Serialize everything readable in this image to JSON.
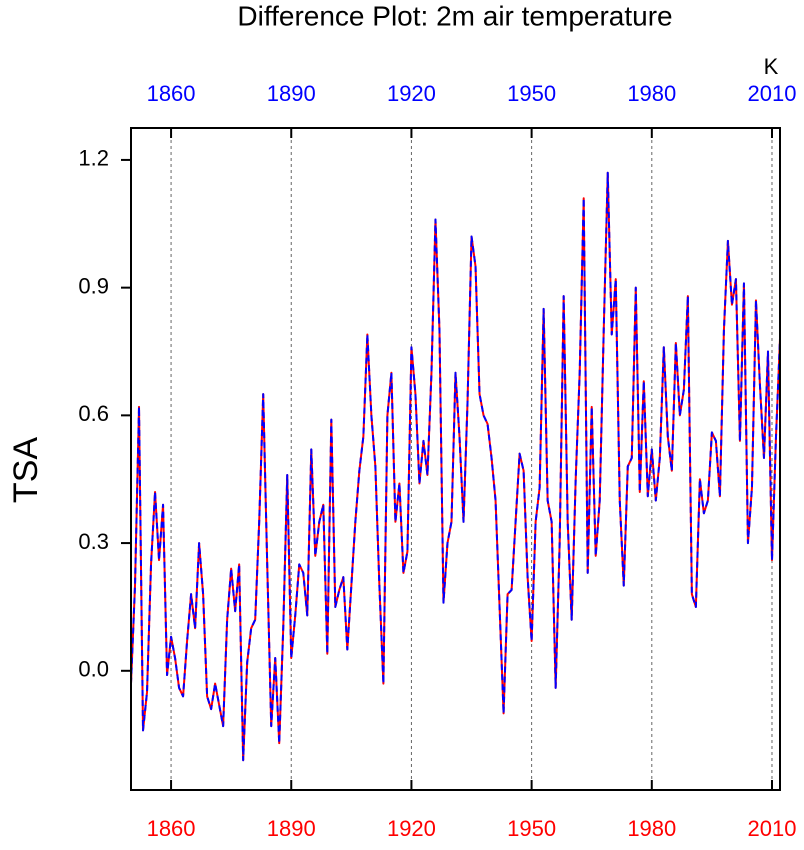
{
  "chart_data": {
    "type": "line",
    "title": "Difference Plot: 2m air temperature",
    "ylabel": "TSA",
    "top_right_label": "K",
    "xlim": [
      1850,
      2012
    ],
    "ylim": [
      -0.28,
      1.275
    ],
    "xticks": [
      1860,
      1890,
      1920,
      1950,
      1980,
      2010
    ],
    "yticks": [
      {
        "value": 0,
        "label": "0.0"
      },
      0.3,
      0.6,
      0.9,
      1.2
    ],
    "x_grid": true,
    "top_tick_color": "blue",
    "bottom_tick_color": "red",
    "x": [
      1850,
      1851,
      1852,
      1853,
      1854,
      1855,
      1856,
      1857,
      1858,
      1859,
      1860,
      1861,
      1862,
      1863,
      1864,
      1865,
      1866,
      1867,
      1868,
      1869,
      1870,
      1871,
      1872,
      1873,
      1874,
      1875,
      1876,
      1877,
      1878,
      1879,
      1880,
      1881,
      1882,
      1883,
      1884,
      1885,
      1886,
      1887,
      1888,
      1889,
      1890,
      1891,
      1892,
      1893,
      1894,
      1895,
      1896,
      1897,
      1898,
      1899,
      1900,
      1901,
      1902,
      1903,
      1904,
      1905,
      1906,
      1907,
      1908,
      1909,
      1910,
      1911,
      1912,
      1913,
      1914,
      1915,
      1916,
      1917,
      1918,
      1919,
      1920,
      1921,
      1922,
      1923,
      1924,
      1925,
      1926,
      1927,
      1928,
      1929,
      1930,
      1931,
      1932,
      1933,
      1934,
      1935,
      1936,
      1937,
      1938,
      1939,
      1940,
      1941,
      1942,
      1943,
      1944,
      1945,
      1946,
      1947,
      1948,
      1949,
      1950,
      1951,
      1952,
      1953,
      1954,
      1955,
      1956,
      1957,
      1958,
      1959,
      1960,
      1961,
      1962,
      1963,
      1964,
      1965,
      1966,
      1967,
      1968,
      1969,
      1970,
      1971,
      1972,
      1973,
      1974,
      1975,
      1976,
      1977,
      1978,
      1979,
      1980,
      1981,
      1982,
      1983,
      1984,
      1985,
      1986,
      1987,
      1988,
      1989,
      1990,
      1991,
      1992,
      1993,
      1994,
      1995,
      1996,
      1997,
      1998,
      1999,
      2000,
      2001,
      2002,
      2003,
      2004,
      2005,
      2006,
      2007,
      2008,
      2009,
      2010,
      2011,
      2012
    ],
    "series": [
      {
        "color": "red",
        "style": "solid",
        "values": [
          -0.03,
          0.2,
          0.62,
          -0.14,
          -0.05,
          0.25,
          0.42,
          0.26,
          0.39,
          -0.01,
          0.08,
          0.03,
          -0.04,
          -0.06,
          0.07,
          0.18,
          0.1,
          0.3,
          0.18,
          -0.06,
          -0.09,
          -0.03,
          -0.08,
          -0.13,
          0.12,
          0.24,
          0.14,
          0.25,
          -0.21,
          0.02,
          0.1,
          0.12,
          0.35,
          0.65,
          0.25,
          -0.13,
          0.03,
          -0.17,
          0.1,
          0.46,
          0.03,
          0.13,
          0.25,
          0.23,
          0.13,
          0.52,
          0.27,
          0.35,
          0.39,
          0.04,
          0.59,
          0.15,
          0.19,
          0.22,
          0.05,
          0.2,
          0.35,
          0.47,
          0.55,
          0.79,
          0.6,
          0.48,
          0.2,
          -0.03,
          0.6,
          0.7,
          0.35,
          0.44,
          0.23,
          0.28,
          0.76,
          0.65,
          0.44,
          0.54,
          0.46,
          0.7,
          1.06,
          0.8,
          0.16,
          0.3,
          0.35,
          0.7,
          0.55,
          0.35,
          0.63,
          1.02,
          0.95,
          0.65,
          0.6,
          0.58,
          0.5,
          0.4,
          0.15,
          -0.1,
          0.18,
          0.19,
          0.35,
          0.51,
          0.47,
          0.22,
          0.07,
          0.35,
          0.43,
          0.85,
          0.4,
          0.35,
          -0.04,
          0.3,
          0.88,
          0.35,
          0.12,
          0.45,
          0.7,
          1.11,
          0.23,
          0.62,
          0.27,
          0.4,
          0.8,
          1.17,
          0.79,
          0.92,
          0.4,
          0.2,
          0.48,
          0.5,
          0.9,
          0.42,
          0.68,
          0.41,
          0.52,
          0.4,
          0.5,
          0.76,
          0.55,
          0.47,
          0.77,
          0.6,
          0.66,
          0.88,
          0.18,
          0.15,
          0.45,
          0.37,
          0.4,
          0.56,
          0.54,
          0.41,
          0.8,
          1.01,
          0.86,
          0.92,
          0.54,
          0.91,
          0.3,
          0.43,
          0.87,
          0.67,
          0.5,
          0.75,
          0.26,
          0.55,
          0.78
        ]
      },
      {
        "color": "blue",
        "style": "dashed",
        "values": [
          -0.03,
          0.2,
          0.62,
          -0.14,
          -0.05,
          0.25,
          0.42,
          0.26,
          0.39,
          -0.01,
          0.08,
          0.03,
          -0.04,
          -0.06,
          0.07,
          0.18,
          0.1,
          0.3,
          0.18,
          -0.06,
          -0.09,
          -0.03,
          -0.08,
          -0.13,
          0.12,
          0.24,
          0.14,
          0.25,
          -0.21,
          0.02,
          0.1,
          0.12,
          0.35,
          0.65,
          0.25,
          -0.13,
          0.03,
          -0.17,
          0.1,
          0.46,
          0.03,
          0.13,
          0.25,
          0.23,
          0.13,
          0.52,
          0.27,
          0.35,
          0.39,
          0.04,
          0.59,
          0.15,
          0.19,
          0.22,
          0.05,
          0.2,
          0.35,
          0.47,
          0.55,
          0.79,
          0.6,
          0.48,
          0.2,
          -0.03,
          0.6,
          0.7,
          0.35,
          0.44,
          0.23,
          0.28,
          0.76,
          0.65,
          0.44,
          0.54,
          0.46,
          0.7,
          1.06,
          0.8,
          0.16,
          0.3,
          0.35,
          0.7,
          0.55,
          0.35,
          0.63,
          1.02,
          0.95,
          0.65,
          0.6,
          0.58,
          0.5,
          0.4,
          0.15,
          -0.1,
          0.18,
          0.19,
          0.35,
          0.51,
          0.47,
          0.22,
          0.07,
          0.35,
          0.43,
          0.85,
          0.4,
          0.35,
          -0.04,
          0.3,
          0.88,
          0.35,
          0.12,
          0.45,
          0.7,
          1.11,
          0.23,
          0.62,
          0.27,
          0.4,
          0.8,
          1.17,
          0.79,
          0.92,
          0.4,
          0.2,
          0.48,
          0.5,
          0.9,
          0.42,
          0.68,
          0.41,
          0.52,
          0.4,
          0.5,
          0.76,
          0.55,
          0.47,
          0.77,
          0.6,
          0.66,
          0.88,
          0.18,
          0.15,
          0.45,
          0.37,
          0.4,
          0.56,
          0.54,
          0.41,
          0.8,
          1.01,
          0.86,
          0.92,
          0.54,
          0.91,
          0.3,
          0.43,
          0.87,
          0.67,
          0.5,
          0.75,
          0.26,
          0.55,
          0.78
        ]
      }
    ]
  }
}
